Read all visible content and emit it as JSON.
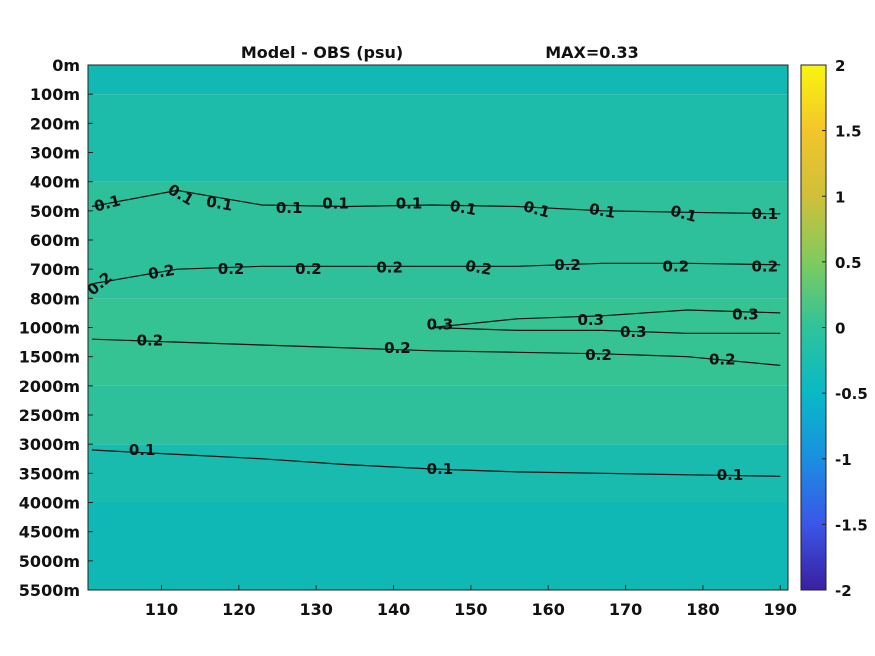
{
  "chart_data": {
    "type": "heatmap",
    "title": "Model - OBS (psu)",
    "max_label": "MAX=0.33",
    "x": {
      "ticks": [
        110,
        120,
        130,
        140,
        150,
        160,
        170,
        180,
        190
      ],
      "range": [
        100.5,
        191
      ]
    },
    "y": {
      "ticks": [
        "0m",
        "100m",
        "200m",
        "300m",
        "400m",
        "500m",
        "600m",
        "700m",
        "800m",
        "1000m",
        "1500m",
        "2000m",
        "2500m",
        "3000m",
        "3500m",
        "4000m",
        "4500m",
        "5000m",
        "5500m"
      ]
    },
    "colorbar": {
      "range": [
        -2,
        2
      ],
      "ticks": [
        "2",
        "1.5",
        "1",
        "0.5",
        "0",
        "-0.5",
        "-1",
        "-1.5",
        "-2"
      ],
      "colors": [
        "#3a1fa0",
        "#3b56e8",
        "#1a8fe0",
        "#09b9c6",
        "#2fc39a",
        "#80cb5e",
        "#cfc03a",
        "#f3c52a",
        "#f9f50f"
      ]
    },
    "field_colors": {
      "surface": "#12b9b4",
      "upper": "#1cbbaa",
      "mid": "#2dc09a",
      "core": "#36c394",
      "deep": "#18bbad",
      "bottom": "#0fb8b5"
    },
    "contours": [
      {
        "level": 0.1,
        "label": "0.1",
        "depth_index": [
          4.85,
          4.3,
          4.8,
          4.85,
          4.8,
          4.85,
          5.0,
          5.05,
          5.1
        ]
      },
      {
        "level": 0.2,
        "label": "0.2",
        "depth_index": [
          7.5,
          7.0,
          6.9,
          6.9,
          6.9,
          6.9,
          6.8,
          6.8,
          6.85
        ]
      },
      {
        "level": 0.3,
        "label": "0.3",
        "depth_index": [
          null,
          null,
          null,
          null,
          9.0,
          8.7,
          8.6,
          8.4,
          8.5
        ]
      },
      {
        "level": 0.3,
        "label": "0.3",
        "depth_index": [
          null,
          null,
          null,
          null,
          9.0,
          9.1,
          9.1,
          9.2,
          9.2
        ]
      },
      {
        "level": 0.2,
        "label": "0.2",
        "depth_index": [
          9.4,
          9.5,
          9.6,
          9.7,
          9.8,
          9.85,
          9.9,
          10.0,
          10.3
        ]
      },
      {
        "level": 0.1,
        "label": "0.1",
        "depth_index": [
          13.2,
          13.35,
          13.5,
          13.7,
          13.85,
          13.95,
          14.0,
          14.05,
          14.1
        ]
      }
    ],
    "labels": [
      {
        "text": "0.1",
        "x": 103,
        "d": 4.75,
        "rot": -15
      },
      {
        "text": "0.1",
        "x": 112.5,
        "d": 4.45,
        "rot": 30
      },
      {
        "text": "0.1",
        "x": 117.5,
        "d": 4.75,
        "rot": 10
      },
      {
        "text": "0.1",
        "x": 126.5,
        "d": 4.9,
        "rot": 0
      },
      {
        "text": "0.1",
        "x": 132.5,
        "d": 4.75,
        "rot": 0
      },
      {
        "text": "0.1",
        "x": 142,
        "d": 4.75,
        "rot": 0
      },
      {
        "text": "0.1",
        "x": 149,
        "d": 4.9,
        "rot": 10
      },
      {
        "text": "0.1",
        "x": 158.5,
        "d": 4.95,
        "rot": 15
      },
      {
        "text": "0.1",
        "x": 167,
        "d": 5.0,
        "rot": 10
      },
      {
        "text": "0.1",
        "x": 177.5,
        "d": 5.1,
        "rot": 15
      },
      {
        "text": "0.1",
        "x": 188,
        "d": 5.1,
        "rot": 0
      },
      {
        "text": "0.2",
        "x": 102,
        "d": 7.5,
        "rot": -40
      },
      {
        "text": "0.2",
        "x": 110,
        "d": 7.1,
        "rot": -10
      },
      {
        "text": "0.2",
        "x": 119,
        "d": 7.0,
        "rot": 0
      },
      {
        "text": "0.2",
        "x": 129,
        "d": 7.0,
        "rot": 0
      },
      {
        "text": "0.2",
        "x": 139.5,
        "d": 6.95,
        "rot": 0
      },
      {
        "text": "0.2",
        "x": 151,
        "d": 6.95,
        "rot": 10
      },
      {
        "text": "0.2",
        "x": 162.5,
        "d": 6.85,
        "rot": 0
      },
      {
        "text": "0.2",
        "x": 176.5,
        "d": 6.9,
        "rot": 0
      },
      {
        "text": "0.2",
        "x": 188,
        "d": 6.9,
        "rot": 0
      },
      {
        "text": "0.3",
        "x": 146,
        "d": 8.9,
        "rot": 0
      },
      {
        "text": "0.3",
        "x": 165.5,
        "d": 8.75,
        "rot": 0
      },
      {
        "text": "0.3",
        "x": 185.5,
        "d": 8.55,
        "rot": 0
      },
      {
        "text": "0.3",
        "x": 171,
        "d": 9.15,
        "rot": 0
      },
      {
        "text": "0.2",
        "x": 108.5,
        "d": 9.45,
        "rot": 0
      },
      {
        "text": "0.2",
        "x": 140.5,
        "d": 9.7,
        "rot": 0
      },
      {
        "text": "0.2",
        "x": 166.5,
        "d": 9.95,
        "rot": 0
      },
      {
        "text": "0.2",
        "x": 182.5,
        "d": 10.1,
        "rot": 0
      },
      {
        "text": "0.1",
        "x": 107.5,
        "d": 13.2,
        "rot": 0
      },
      {
        "text": "0.1",
        "x": 146,
        "d": 13.85,
        "rot": 0
      },
      {
        "text": "0.1",
        "x": 183.5,
        "d": 14.05,
        "rot": 0
      }
    ]
  }
}
